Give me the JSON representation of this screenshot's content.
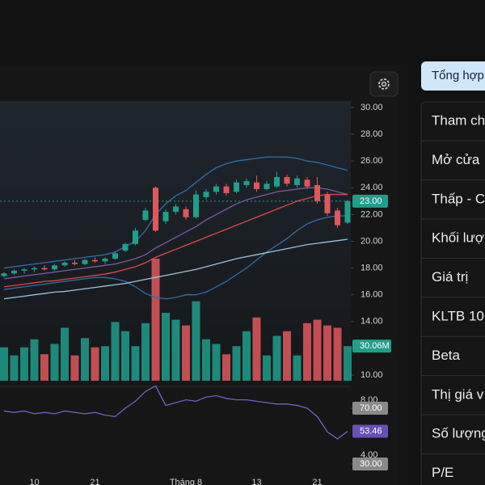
{
  "ui": {
    "button": "Tổng hợp",
    "rows": [
      "Tham ch",
      "Mở cửa",
      "Thấp - C",
      "Khối lượ",
      "Giá trị",
      "KLTB 10",
      "Beta",
      "Thị giá v",
      "Số lượng",
      "P/E"
    ]
  },
  "chart_data": {
    "type": "candlestick",
    "categories": [
      null,
      null,
      null,
      "10",
      null,
      null,
      null,
      null,
      null,
      "21",
      null,
      null,
      null,
      null,
      null,
      null,
      null,
      null,
      "Tháng 8",
      null,
      null,
      null,
      null,
      null,
      null,
      "13",
      null,
      null,
      null,
      null,
      null,
      "21",
      null,
      null,
      null
    ],
    "open": [
      17.4,
      17.6,
      17.8,
      17.9,
      18.0,
      17.9,
      18.2,
      18.4,
      18.3,
      18.6,
      18.5,
      18.7,
      19.3,
      19.8,
      21.6,
      24.0,
      21.5,
      22.2,
      22.4,
      21.8,
      23.3,
      23.7,
      24.1,
      23.7,
      24.2,
      24.4,
      23.9,
      24.1,
      24.8,
      24.2,
      24.6,
      24.2,
      23.5,
      22.3,
      21.4
    ],
    "high": [
      17.7,
      17.9,
      18.0,
      18.1,
      18.2,
      18.3,
      18.5,
      18.6,
      18.7,
      18.8,
      18.8,
      19.2,
      19.9,
      21.0,
      22.5,
      24.1,
      22.4,
      22.8,
      22.6,
      23.8,
      23.9,
      24.3,
      24.3,
      24.6,
      24.7,
      24.9,
      24.5,
      25.2,
      25.0,
      24.9,
      24.8,
      24.8,
      23.7,
      22.5,
      23.1
    ],
    "low": [
      17.3,
      17.5,
      17.6,
      17.7,
      17.8,
      17.8,
      18.1,
      18.2,
      18.2,
      18.4,
      18.3,
      18.6,
      19.2,
      19.7,
      21.5,
      20.7,
      21.3,
      22.0,
      21.6,
      21.7,
      23.1,
      23.5,
      23.4,
      23.6,
      24.0,
      23.7,
      23.8,
      24.0,
      24.1,
      24.0,
      23.9,
      22.8,
      21.9,
      21.0,
      21.3
    ],
    "close": [
      17.6,
      17.8,
      17.9,
      18.0,
      17.9,
      18.2,
      18.4,
      18.3,
      18.6,
      18.5,
      18.7,
      19.1,
      19.8,
      20.8,
      22.3,
      20.8,
      22.2,
      22.6,
      21.8,
      23.5,
      23.7,
      24.1,
      23.6,
      24.4,
      24.5,
      23.9,
      24.3,
      24.8,
      24.3,
      24.7,
      24.1,
      23.0,
      22.1,
      21.2,
      23.0
    ],
    "last_price_label": "23.00",
    "up_color": "#1f9e8c",
    "down_color": "#e0575c",
    "ylim": [
      10,
      30
    ],
    "yticks": [
      {
        "value": 30,
        "label": "30.00"
      },
      {
        "value": 28,
        "label": "28.00"
      },
      {
        "value": 26,
        "label": "26.00"
      },
      {
        "value": 24,
        "label": "24.00"
      },
      {
        "value": 22,
        "label": "22.00"
      },
      {
        "value": 20,
        "label": "20.00"
      },
      {
        "value": 18,
        "label": "18.00"
      },
      {
        "value": 16,
        "label": "16.00"
      },
      {
        "value": 14,
        "label": "14.00"
      },
      {
        "value": 12,
        "label": "12.00"
      },
      {
        "value": 10,
        "label": "10.00"
      }
    ],
    "lines": [
      {
        "color": "#2f6ea8",
        "values": [
          18.0,
          18.1,
          18.2,
          18.3,
          18.4,
          18.5,
          18.6,
          18.7,
          18.8,
          18.9,
          19.0,
          19.2,
          19.6,
          20.0,
          20.8,
          22.0,
          22.8,
          23.4,
          23.8,
          24.4,
          25.0,
          25.5,
          25.8,
          26.0,
          26.1,
          26.2,
          26.3,
          26.3,
          26.3,
          26.2,
          26.0,
          25.9,
          25.7,
          25.5,
          25.3
        ]
      },
      {
        "color": "#2f6ea8",
        "values": [
          16.4,
          16.5,
          16.6,
          16.7,
          16.8,
          16.9,
          17.0,
          17.1,
          17.2,
          17.3,
          17.3,
          17.2,
          17.0,
          16.6,
          16.1,
          15.8,
          15.7,
          15.8,
          16.0,
          16.0,
          16.2,
          16.6,
          17.0,
          17.5,
          18.0,
          18.6,
          19.2,
          19.7,
          20.2,
          20.8,
          21.3,
          21.6,
          21.8,
          21.9,
          21.9
        ]
      },
      {
        "color": "#7b5aa6",
        "values": [
          17.2,
          17.3,
          17.4,
          17.5,
          17.6,
          17.7,
          17.8,
          17.9,
          18.0,
          18.1,
          18.2,
          18.3,
          18.5,
          18.7,
          19.0,
          19.5,
          19.9,
          20.3,
          20.7,
          21.1,
          21.6,
          22.0,
          22.4,
          22.8,
          23.1,
          23.3,
          23.5,
          23.7,
          23.8,
          23.9,
          24.0,
          24.0,
          23.9,
          23.7,
          23.5
        ]
      },
      {
        "color": "#e0474c",
        "values": [
          16.6,
          16.7,
          16.8,
          16.9,
          17.0,
          17.05,
          17.15,
          17.25,
          17.35,
          17.45,
          17.55,
          17.7,
          17.9,
          18.1,
          18.4,
          18.8,
          19.1,
          19.4,
          19.7,
          20.0,
          20.3,
          20.6,
          20.9,
          21.2,
          21.5,
          21.8,
          22.1,
          22.4,
          22.7,
          23.0,
          23.2,
          23.4,
          23.5,
          23.5,
          23.5
        ]
      },
      {
        "color": "#9cc3dc",
        "values": [
          15.7,
          15.8,
          15.9,
          16.0,
          16.1,
          16.2,
          16.25,
          16.35,
          16.45,
          16.55,
          16.65,
          16.75,
          16.85,
          17.0,
          17.15,
          17.3,
          17.45,
          17.6,
          17.75,
          17.9,
          18.1,
          18.3,
          18.5,
          18.7,
          18.85,
          19.0,
          19.15,
          19.3,
          19.45,
          19.6,
          19.75,
          19.85,
          19.95,
          20.05,
          20.15
        ]
      }
    ],
    "volume": {
      "values": [
        29,
        22,
        29,
        36,
        23,
        32,
        46,
        22,
        37,
        29,
        30,
        51,
        43,
        30,
        50,
        106,
        59,
        53,
        48,
        69,
        36,
        32,
        23,
        30,
        43,
        55,
        22,
        39,
        43,
        22,
        50,
        53,
        48,
        46,
        30.06
      ],
      "last_label": "30.06M",
      "badge_color": "#1f9e8c"
    },
    "rsi": {
      "color": "#6f62c8",
      "values": [
        68,
        67,
        68,
        66,
        67,
        66,
        68,
        67,
        66,
        67,
        65,
        64,
        70,
        75,
        82,
        86,
        72,
        74,
        76,
        75,
        78,
        79,
        77,
        76,
        76,
        75,
        74,
        73,
        73,
        72,
        70,
        64,
        53,
        48,
        53.46
      ],
      "levels": [
        {
          "value": 70,
          "label": "70.00"
        },
        {
          "value": 30,
          "label": "30.00"
        }
      ],
      "axis_labels": [
        "8.00",
        "4.00"
      ],
      "badge_color": "#6a4fb8"
    }
  }
}
